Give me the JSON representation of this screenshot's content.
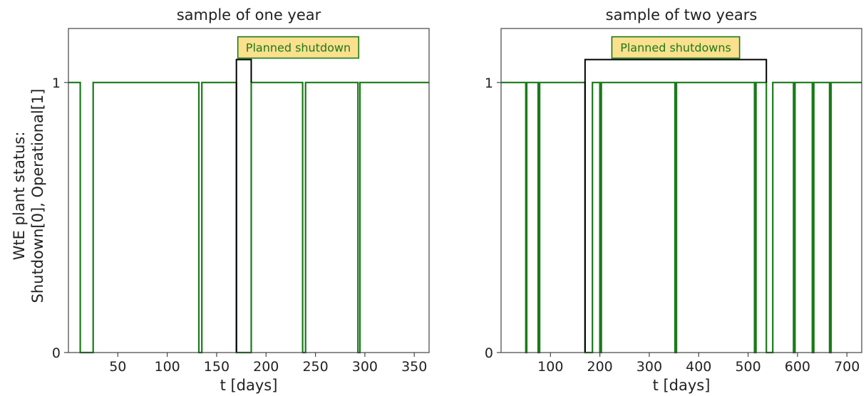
{
  "colors": {
    "line": "#1a7a1a",
    "annotation_box": "#fbe08e",
    "annotation_border": "#1a7a1a",
    "annotation_text": "#1a7a1a",
    "bracket": "#000000",
    "axes": "#444444"
  },
  "shared_ylabel": [
    "WtE plant status:",
    "Shutdown[0], Operational[1]"
  ],
  "chart_data": [
    {
      "type": "line",
      "title": "sample of one year",
      "xlabel": "t [days]",
      "xlim": [
        0,
        365
      ],
      "ylim": [
        0,
        1.2
      ],
      "xticks": [
        50,
        100,
        150,
        200,
        250,
        300,
        350
      ],
      "yticks": [
        0,
        1
      ],
      "grid": false,
      "series": [
        {
          "x": [
            0,
            12,
            12,
            25,
            25,
            132,
            132,
            135,
            135,
            170,
            170,
            185,
            185,
            237,
            237,
            240,
            240,
            293,
            293,
            295,
            295,
            365
          ],
          "y": [
            1,
            1,
            0,
            0,
            1,
            1,
            0,
            0,
            1,
            1,
            0,
            0,
            1,
            1,
            0,
            0,
            1,
            1,
            0,
            0,
            1,
            1
          ]
        }
      ],
      "annotation": {
        "text": "Planned shutdown",
        "x_start": 170,
        "x_end": 185
      }
    },
    {
      "type": "line",
      "title": "sample of two years",
      "xlabel": "t [days]",
      "xlim": [
        0,
        730
      ],
      "ylim": [
        0,
        1.2
      ],
      "xticks": [
        100,
        200,
        300,
        400,
        500,
        600,
        700
      ],
      "yticks": [
        0,
        1
      ],
      "grid": false,
      "series": [
        {
          "x": [
            0,
            50,
            50,
            52,
            52,
            75,
            75,
            78,
            78,
            170,
            170,
            185,
            185,
            200,
            200,
            203,
            203,
            352,
            352,
            355,
            355,
            513,
            513,
            516,
            516,
            537,
            537,
            550,
            550,
            592,
            592,
            595,
            595,
            630,
            630,
            633,
            633,
            665,
            665,
            668,
            668,
            730
          ],
          "y": [
            1,
            1,
            0,
            0,
            1,
            1,
            0,
            0,
            1,
            1,
            0,
            0,
            1,
            1,
            0,
            0,
            1,
            1,
            0,
            0,
            1,
            1,
            0,
            0,
            1,
            1,
            0,
            0,
            1,
            1,
            0,
            0,
            1,
            1,
            0,
            0,
            1,
            1,
            0,
            0,
            1,
            1
          ]
        }
      ],
      "annotation": {
        "text": "Planned shutdowns",
        "x_start": 170,
        "x_end": 537
      }
    }
  ]
}
